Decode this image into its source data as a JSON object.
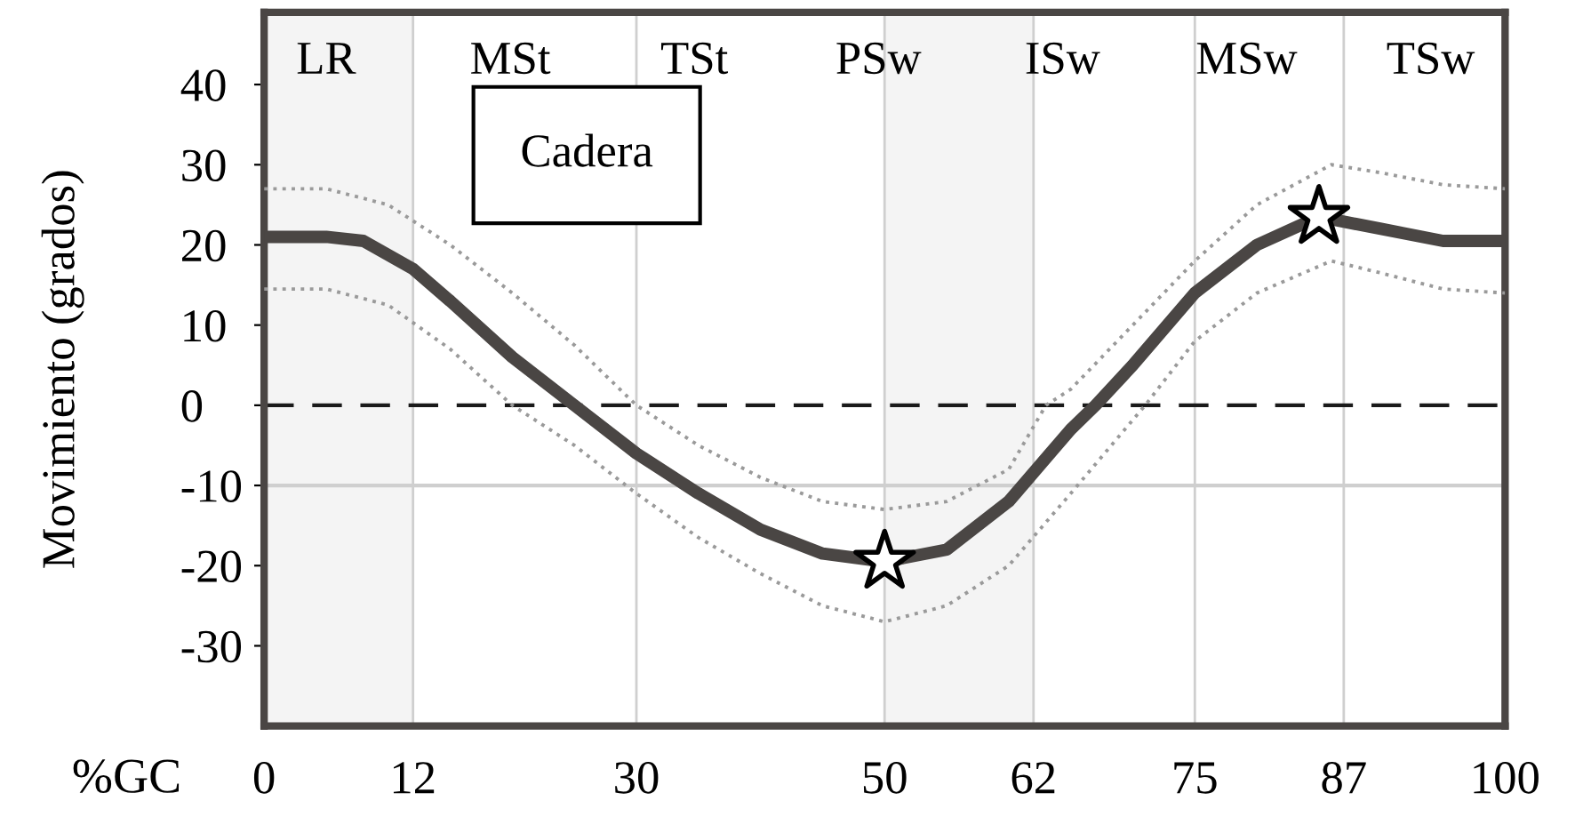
{
  "chart_data": {
    "type": "line",
    "xlabel": "%GC",
    "ylabel": "Movimiento (grados)",
    "annotations": [
      "LR",
      "MSt",
      "TSt",
      "PSw",
      "ISw",
      "MSw",
      "TSw",
      "Cadera"
    ],
    "xlim": [
      0,
      100
    ],
    "xticks": [
      0,
      12,
      30,
      50,
      62,
      75,
      87,
      100
    ],
    "ylim": [
      -40,
      49
    ],
    "yticks": [
      -30,
      -20,
      -10,
      0,
      10,
      20,
      30,
      40
    ],
    "grid": "x",
    "marker": "none",
    "ref_lines": [
      {
        "axis": "y",
        "value": 0,
        "line_style": "dashed",
        "color": "#1a1a1a"
      },
      {
        "axis": "y",
        "value": -10,
        "line_style": "solid",
        "color": "#cfcfcf"
      }
    ],
    "bands": [
      {
        "axis": "x",
        "from": 0,
        "to": 12,
        "color": "#f4f4f4"
      },
      {
        "axis": "x",
        "from": 50,
        "to": 62,
        "color": "#f4f4f4"
      }
    ],
    "series": [
      {
        "color": "#9a9a9a",
        "line_style": "dotted",
        "x": [
          0,
          5,
          10,
          15,
          20,
          25,
          30,
          35,
          40,
          45,
          50,
          55,
          60,
          63,
          65,
          70,
          75,
          80,
          86,
          90,
          95,
          100
        ],
        "values": [
          27,
          27,
          25,
          20,
          14,
          7.5,
          0,
          -5,
          -9,
          -12,
          -13,
          -12,
          -8,
          0,
          2,
          10,
          18,
          25,
          30,
          29,
          27.5,
          27
        ]
      },
      {
        "color": "#9a9a9a",
        "line_style": "dotted",
        "x": [
          0,
          5,
          10,
          15,
          20,
          25,
          30,
          35,
          40,
          45,
          50,
          55,
          60,
          65,
          71,
          75,
          80,
          86,
          90,
          95,
          100
        ],
        "values": [
          14.5,
          14.5,
          12.5,
          7,
          0,
          -5,
          -11,
          -16.5,
          -21,
          -25,
          -27,
          -25,
          -20,
          -11,
          0,
          8,
          14,
          18,
          16.5,
          14.5,
          14
        ]
      },
      {
        "color": "#4a4644",
        "line_style": "solid",
        "x": [
          0,
          5,
          8,
          12,
          15,
          20,
          25,
          30,
          35,
          40,
          45,
          50,
          55,
          60,
          65,
          67,
          70,
          75,
          80,
          85,
          90,
          95,
          100
        ],
        "values": [
          21,
          21,
          20.5,
          17,
          13,
          6,
          0,
          -6,
          -11,
          -15.5,
          -18.5,
          -19.5,
          -18,
          -12,
          -3,
          0,
          5,
          14,
          20,
          23.5,
          22,
          20.5,
          20.5
        ]
      },
      {
        "type": "scatter",
        "marker": "star",
        "color": "#ffffff",
        "x": [
          50,
          85
        ],
        "values": [
          -19.5,
          23.5
        ]
      }
    ]
  }
}
